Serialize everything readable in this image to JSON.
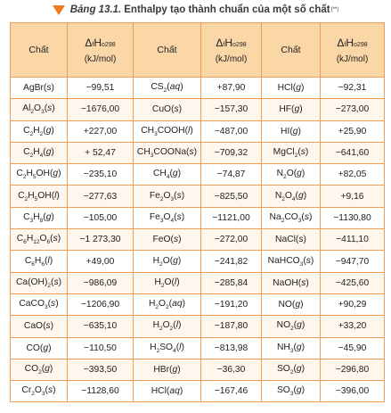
{
  "caption": {
    "label": "Bảng 13.1.",
    "title": "Enthalpy tạo thành chuẩn của một số chất",
    "note_mark": "(**)"
  },
  "header": {
    "substance": "Chất",
    "enthalpy_symbol": "ΔfH°298",
    "enthalpy_unit": "(kJ/mol)"
  },
  "rows": [
    [
      {
        "c": "AgBr(s)",
        "v": "−99,51"
      },
      {
        "c": "CS2(aq)",
        "v": "+87,90"
      },
      {
        "c": "HCl(g)",
        "v": "−92,31"
      }
    ],
    [
      {
        "c": "Al2O3(s)",
        "v": "−1676,00"
      },
      {
        "c": "CuO(s)",
        "v": "−157,30"
      },
      {
        "c": "HF(g)",
        "v": "−273,00"
      }
    ],
    [
      {
        "c": "C2H2(g)",
        "v": "+227,00"
      },
      {
        "c": "CH3COOH(l)",
        "v": "−487,00"
      },
      {
        "c": "HI(g)",
        "v": "+25,90"
      }
    ],
    [
      {
        "c": "C2H4(g)",
        "v": "+ 52,47"
      },
      {
        "c": "CH3COONa(s)",
        "v": "−709,32"
      },
      {
        "c": "MgCl2(s)",
        "v": "−641,60"
      }
    ],
    [
      {
        "c": "C2H5OH(g)",
        "v": "−235,10"
      },
      {
        "c": "CH4(g)",
        "v": "−74,87"
      },
      {
        "c": "N2O(g)",
        "v": "+82,05"
      }
    ],
    [
      {
        "c": "C2H5OH(l)",
        "v": "−277,63"
      },
      {
        "c": "Fe2O3(s)",
        "v": "−825,50"
      },
      {
        "c": "N2O4(g)",
        "v": "+9,16"
      }
    ],
    [
      {
        "c": "C3H8(g)",
        "v": "−105,00"
      },
      {
        "c": "Fe3O4(s)",
        "v": "−1121,00"
      },
      {
        "c": "Na2CO3(s)",
        "v": "−1130,80"
      }
    ],
    [
      {
        "c": "C6H12O6(s)",
        "v": "−1 273,30"
      },
      {
        "c": "FeO(s)",
        "v": "−272,00"
      },
      {
        "c": "NaCl(s)",
        "v": "−411,10"
      }
    ],
    [
      {
        "c": "C6H6(l)",
        "v": "+49,00"
      },
      {
        "c": "H2O(g)",
        "v": "−241,82"
      },
      {
        "c": "NaHCO3(s)",
        "v": "−947,70"
      }
    ],
    [
      {
        "c": "Ca(OH)2(s)",
        "v": "−986,09"
      },
      {
        "c": "H2O(l)",
        "v": "−285,84"
      },
      {
        "c": "NaOH(s)",
        "v": "−425,60"
      }
    ],
    [
      {
        "c": "CaCO3(s)",
        "v": "−1206,90"
      },
      {
        "c": "H2O2(aq)",
        "v": "−191,20"
      },
      {
        "c": "NO(g)",
        "v": "+90,29"
      }
    ],
    [
      {
        "c": "CaO(s)",
        "v": "−635,10"
      },
      {
        "c": "H2O2(l)",
        "v": "−187,80"
      },
      {
        "c": "NO2(g)",
        "v": "+33,20"
      }
    ],
    [
      {
        "c": "CO(g)",
        "v": "−110,50"
      },
      {
        "c": "H2SO4(l)",
        "v": "−813,98"
      },
      {
        "c": "NH3(g)",
        "v": "−45,90"
      }
    ],
    [
      {
        "c": "CO2(g)",
        "v": "−393,50"
      },
      {
        "c": "HBr(g)",
        "v": "−36,30"
      },
      {
        "c": "SO2(g)",
        "v": "−296,80"
      }
    ],
    [
      {
        "c": "Cr2O3(s)",
        "v": "−1128,60"
      },
      {
        "c": "HCl(aq)",
        "v": "−167,46"
      },
      {
        "c": "SO3(g)",
        "v": "−396,00"
      }
    ]
  ]
}
